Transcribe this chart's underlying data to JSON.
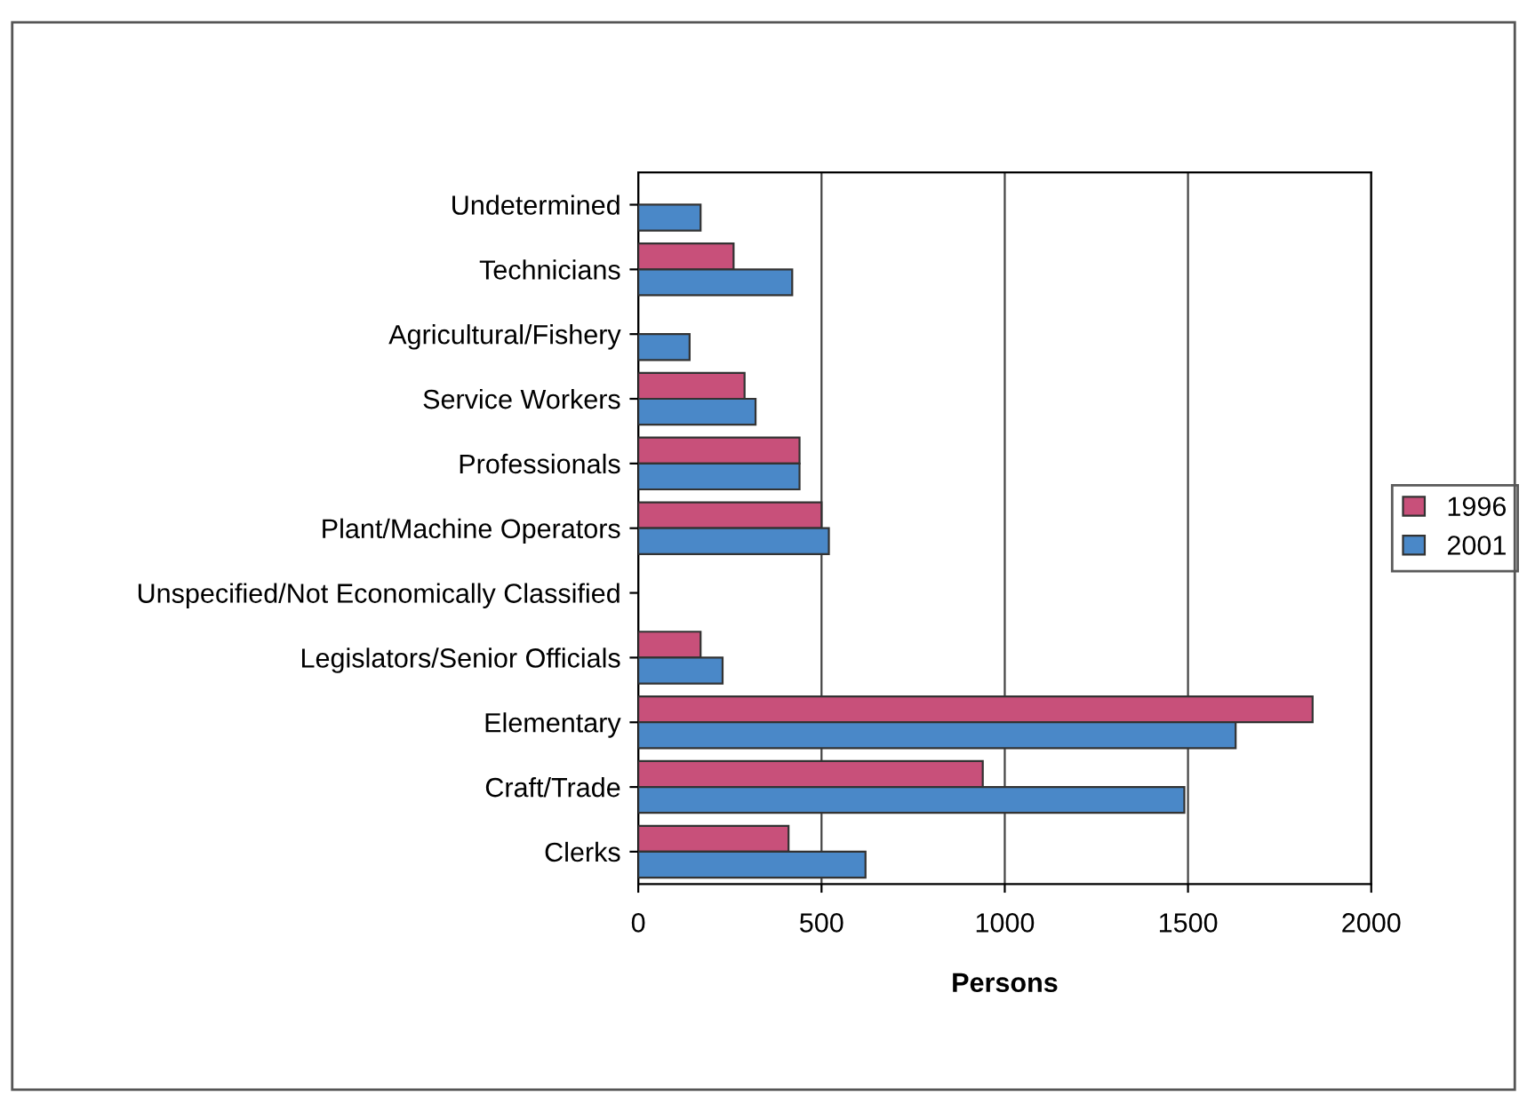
{
  "chart_data": {
    "type": "bar",
    "orientation": "horizontal",
    "xlabel": "Persons",
    "categories": [
      "Undetermined",
      "Technicians",
      "Agricultural/Fishery",
      "Service Workers",
      "Professionals",
      "Plant/Machine Operators",
      "Unspecified/Not Economically Classified",
      "Legislators/Senior Officials",
      "Elementary",
      "Craft/Trade",
      "Clerks"
    ],
    "series": [
      {
        "name": "1996",
        "color": "#c8507a",
        "values": [
          null,
          260,
          null,
          290,
          440,
          500,
          null,
          170,
          1840,
          940,
          410
        ]
      },
      {
        "name": "2001",
        "color": "#4a88c8",
        "values": [
          170,
          420,
          140,
          320,
          440,
          520,
          null,
          230,
          1630,
          1490,
          620
        ]
      }
    ],
    "xlim": [
      0,
      2000
    ],
    "xticks": [
      0,
      500,
      1000,
      1500,
      2000
    ],
    "grid": "x",
    "legend": "right"
  }
}
